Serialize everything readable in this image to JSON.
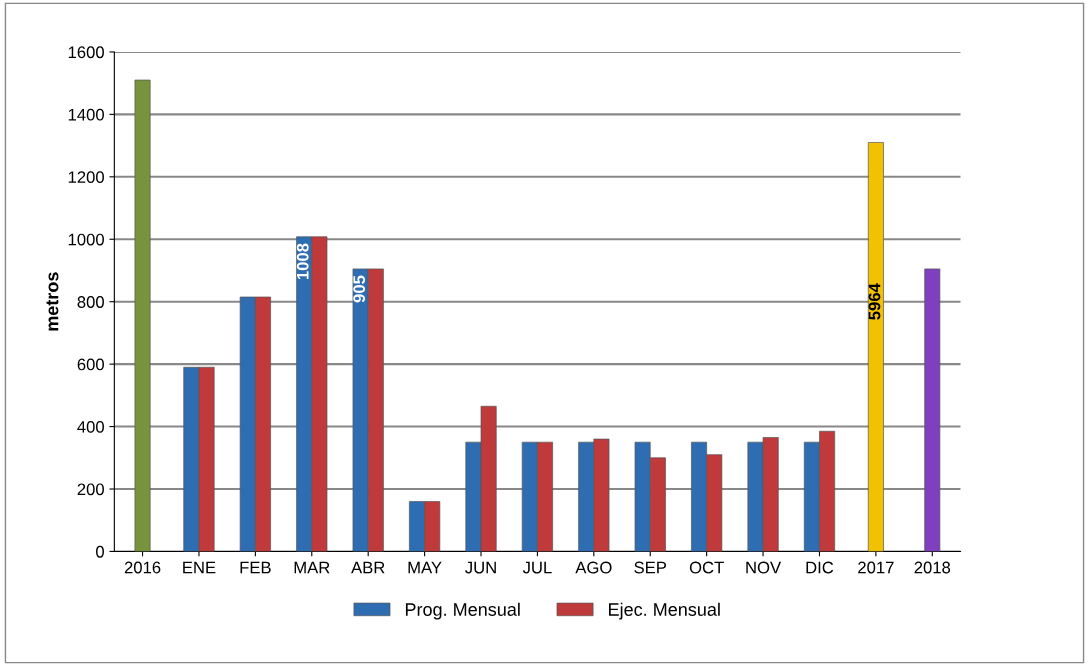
{
  "chart_data": {
    "type": "bar",
    "ylabel": "metros",
    "categories": [
      "2016",
      "ENE",
      "FEB",
      "MAR",
      "ABR",
      "MAY",
      "JUN",
      "JUL",
      "AGO",
      "SEP",
      "OCT",
      "NOV",
      "DIC",
      "2017",
      "2018"
    ],
    "series": [
      {
        "name": "Prog. Mensual",
        "color": "#2f6db3",
        "values": [
          null,
          590,
          815,
          1008,
          905,
          160,
          350,
          350,
          350,
          350,
          350,
          350,
          350,
          null,
          null
        ],
        "value_labels": [
          null,
          null,
          null,
          "1008",
          "905",
          null,
          null,
          null,
          null,
          null,
          null,
          null,
          null,
          null,
          null
        ]
      },
      {
        "name": "Ejec. Mensual",
        "color": "#c0393b",
        "values": [
          null,
          590,
          815,
          1008,
          905,
          160,
          465,
          350,
          360,
          300,
          310,
          365,
          385,
          null,
          null
        ]
      },
      {
        "colors": [
          "#77933c",
          null,
          null,
          null,
          null,
          null,
          null,
          null,
          null,
          null,
          null,
          null,
          null,
          "#f2c200",
          "#7f3fbf"
        ],
        "values": [
          1510,
          null,
          null,
          null,
          null,
          null,
          null,
          null,
          null,
          null,
          null,
          null,
          null,
          1310,
          905
        ]
      }
    ],
    "annotations": [
      "5964"
    ],
    "ylim": [
      0,
      1600
    ],
    "yticks": [
      0,
      200,
      400,
      600,
      800,
      1000,
      1200,
      1400,
      1600
    ],
    "grid": "y",
    "legend": "bottom"
  }
}
